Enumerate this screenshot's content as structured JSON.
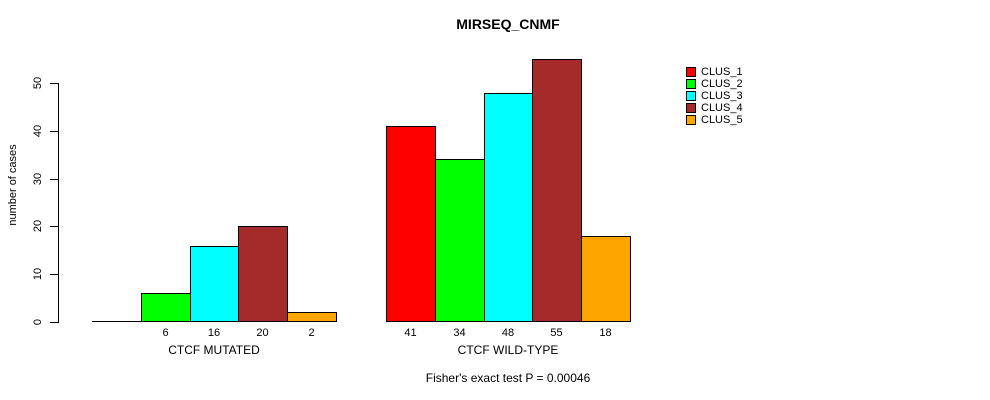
{
  "figure": {
    "title": "MIRSEQ_CNMF",
    "ylabel": "number of cases",
    "footer": "Fisher's exact test P = 0.00046"
  },
  "chart_data": {
    "type": "bar",
    "title": "MIRSEQ_CNMF",
    "xlabel": "",
    "ylabel": "number of cases",
    "ylim": [
      0,
      55
    ],
    "yticks": [
      0,
      10,
      20,
      30,
      40,
      50
    ],
    "grid": false,
    "legend_position": "right",
    "categories": [
      "CTCF MUTATED",
      "CTCF WILD-TYPE"
    ],
    "series": [
      {
        "name": "CLUS_1",
        "color": "#FF0000",
        "values": [
          0,
          41
        ]
      },
      {
        "name": "CLUS_2",
        "color": "#00FF00",
        "values": [
          6,
          34
        ]
      },
      {
        "name": "CLUS_3",
        "color": "#00FFFF",
        "values": [
          16,
          48
        ]
      },
      {
        "name": "CLUS_4",
        "color": "#A52A2A",
        "values": [
          20,
          55
        ]
      },
      {
        "name": "CLUS_5",
        "color": "#FFA500",
        "values": [
          2,
          18
        ]
      }
    ],
    "bar_value_labels": [
      [
        "",
        "6",
        "16",
        "20",
        "2"
      ],
      [
        "41",
        "34",
        "48",
        "55",
        "18"
      ]
    ],
    "annotation": "Fisher's exact test P = 0.00046"
  }
}
